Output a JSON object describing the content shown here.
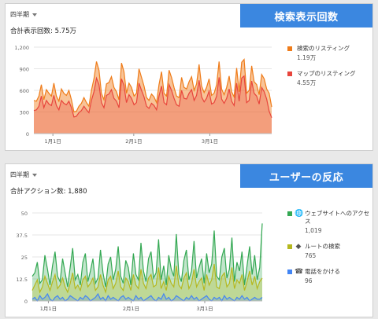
{
  "panel1": {
    "period_label": "四半期",
    "total_label": "合計表示回数: 5.75万",
    "banner": "検索表示回数",
    "legend": [
      {
        "label": "検索のリスティング",
        "value": "1.19万",
        "color": "#ef7c1a"
      },
      {
        "label": "マップのリスティング",
        "value": "4.55万",
        "color": "#e8453c"
      }
    ]
  },
  "panel2": {
    "period_label": "四半期",
    "total_label": "合計アクション数: 1,880",
    "banner": "ユーザーの反応",
    "legend": [
      {
        "label": "ウェブサイトへのアクセス",
        "value": "1,019",
        "color": "#34a853",
        "icon": "globe-icon",
        "glyph": "🌐"
      },
      {
        "label": "ルートの検索",
        "value": "765",
        "color": "#b5b81f",
        "icon": "directions-icon",
        "glyph": "◆"
      },
      {
        "label": "電話をかける",
        "value": "96",
        "color": "#4285f4",
        "icon": "phone-icon",
        "glyph": "☎"
      }
    ]
  },
  "chart_data": [
    {
      "type": "area",
      "ylim": [
        0,
        1200
      ],
      "yticks": [
        "0",
        "300",
        "600",
        "900",
        "1,200"
      ],
      "xticks": [
        "1月1日",
        "2月1日",
        "3月1日"
      ],
      "series": [
        {
          "name": "検索のリスティング",
          "color": "#ef7c1a",
          "values": [
            460,
            450,
            520,
            680,
            470,
            610,
            560,
            520,
            700,
            520,
            450,
            620,
            560,
            530,
            600,
            470,
            300,
            310,
            380,
            420,
            500,
            430,
            380,
            600,
            760,
            1000,
            880,
            560,
            470,
            690,
            710,
            790,
            640,
            580,
            470,
            980,
            860,
            560,
            700,
            640,
            520,
            560,
            900,
            780,
            660,
            500,
            460,
            550,
            510,
            430,
            680,
            860,
            560,
            520,
            880,
            780,
            640,
            520,
            500,
            780,
            640,
            620,
            720,
            790,
            600,
            690,
            960,
            660,
            570,
            640,
            760,
            530,
            560,
            680,
            1000,
            620,
            540,
            640,
            800,
            580,
            510,
            910,
            580,
            990,
            1030,
            560,
            600,
            940,
            720,
            680,
            540,
            820,
            760,
            620,
            560,
            370
          ]
        },
        {
          "name": "マップのリスティング",
          "color": "#e8453c",
          "values": [
            320,
            330,
            380,
            520,
            360,
            460,
            410,
            390,
            530,
            390,
            330,
            460,
            420,
            400,
            450,
            360,
            230,
            240,
            290,
            320,
            380,
            330,
            290,
            460,
            580,
            770,
            680,
            430,
            360,
            530,
            550,
            610,
            490,
            450,
            360,
            760,
            670,
            430,
            540,
            490,
            400,
            430,
            700,
            600,
            510,
            380,
            350,
            420,
            390,
            330,
            520,
            660,
            430,
            400,
            680,
            600,
            490,
            400,
            380,
            600,
            490,
            480,
            560,
            610,
            460,
            530,
            740,
            510,
            440,
            490,
            590,
            410,
            430,
            520,
            780,
            480,
            420,
            490,
            620,
            450,
            390,
            700,
            450,
            770,
            800,
            430,
            460,
            730,
            560,
            520,
            410,
            640,
            580,
            480,
            310,
            220
          ]
        }
      ]
    },
    {
      "type": "area",
      "ylim": [
        0,
        50
      ],
      "yticks": [
        "0",
        "12.5",
        "25",
        "37.5",
        "50"
      ],
      "xticks": [
        "1月1日",
        "2月1日",
        "3月1日"
      ],
      "series": [
        {
          "name": "ウェブサイトへのアクセス",
          "color": "#34a853",
          "values": [
            14,
            16,
            22,
            10,
            12,
            26,
            18,
            9,
            20,
            28,
            14,
            11,
            24,
            16,
            8,
            19,
            30,
            12,
            15,
            9,
            22,
            27,
            11,
            17,
            24,
            10,
            13,
            29,
            16,
            8,
            21,
            25,
            12,
            18,
            31,
            14,
            10,
            23,
            19,
            9,
            27,
            15,
            12,
            33,
            17,
            11,
            24,
            28,
            13,
            16,
            35,
            12,
            20,
            9,
            26,
            18,
            14,
            38,
            15,
            11,
            23,
            29,
            12,
            17,
            34,
            13,
            19,
            24,
            10,
            27,
            16,
            21,
            40,
            14,
            12,
            25,
            30,
            13,
            18,
            36,
            11,
            22,
            17,
            28,
            9,
            20,
            31,
            15,
            26,
            12,
            19,
            44
          ]
        },
        {
          "name": "ルートの検索",
          "color": "#b5b81f",
          "values": [
            6,
            9,
            12,
            5,
            8,
            14,
            10,
            6,
            11,
            15,
            7,
            9,
            13,
            8,
            5,
            10,
            16,
            7,
            9,
            6,
            12,
            14,
            8,
            10,
            13,
            6,
            8,
            15,
            9,
            5,
            12,
            14,
            7,
            10,
            17,
            8,
            6,
            13,
            11,
            6,
            15,
            9,
            7,
            18,
            10,
            7,
            13,
            15,
            8,
            9,
            19,
            7,
            11,
            6,
            14,
            10,
            8,
            20,
            9,
            7,
            13,
            16,
            7,
            10,
            18,
            8,
            11,
            13,
            6,
            15,
            9,
            12,
            21,
            8,
            7,
            14,
            16,
            8,
            10,
            19,
            7,
            12,
            10,
            15,
            6,
            11,
            17,
            9,
            14,
            7,
            11,
            13
          ]
        },
        {
          "name": "電話をかける",
          "color": "#4285f4",
          "values": [
            1,
            2,
            0,
            3,
            1,
            2,
            4,
            1,
            0,
            2,
            3,
            1,
            2,
            0,
            1,
            3,
            2,
            1,
            0,
            2,
            1,
            3,
            2,
            0,
            1,
            2,
            4,
            1,
            2,
            0,
            3,
            1,
            2,
            1,
            0,
            2,
            3,
            1,
            2,
            1,
            0,
            3,
            1,
            2,
            0,
            1,
            2,
            3,
            1,
            0,
            2,
            1,
            4,
            1,
            2,
            0,
            1,
            3,
            2,
            1,
            0,
            2,
            1,
            3,
            1,
            2,
            0,
            1,
            2,
            3,
            1,
            0,
            2,
            1,
            2,
            0,
            3,
            1,
            2,
            1,
            0,
            2,
            1,
            3,
            1,
            2,
            0,
            1,
            2,
            1,
            1,
            2
          ]
        }
      ]
    }
  ]
}
